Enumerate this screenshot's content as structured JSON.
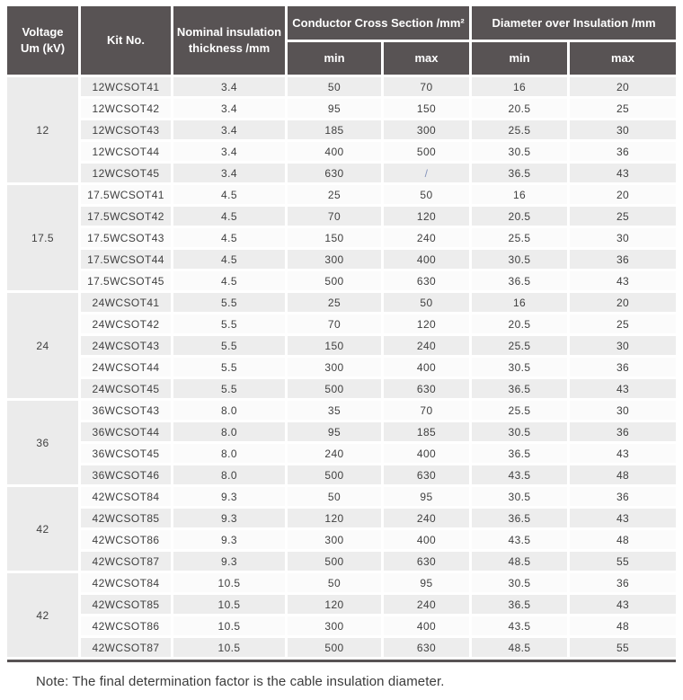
{
  "table": {
    "headers": {
      "voltage": "Voltage\nUm (kV)",
      "kit_no": "Kit No.",
      "nominal": "Nominal insulation\nthickness /mm",
      "ccs": "Conductor Cross Section /mm²",
      "doi": "Diameter over Insulation /mm",
      "min": "min",
      "max": "max"
    },
    "groups": [
      {
        "voltage": "12",
        "rows": [
          {
            "kit": "12WCSOT41",
            "thickness": "3.4",
            "ccs_min": "50",
            "ccs_max": "70",
            "doi_min": "16",
            "doi_max": "20"
          },
          {
            "kit": "12WCSOT42",
            "thickness": "3.4",
            "ccs_min": "95",
            "ccs_max": "150",
            "doi_min": "20.5",
            "doi_max": "25"
          },
          {
            "kit": "12WCSOT43",
            "thickness": "3.4",
            "ccs_min": "185",
            "ccs_max": "300",
            "doi_min": "25.5",
            "doi_max": "30"
          },
          {
            "kit": "12WCSOT44",
            "thickness": "3.4",
            "ccs_min": "400",
            "ccs_max": "500",
            "doi_min": "30.5",
            "doi_max": "36"
          },
          {
            "kit": "12WCSOT45",
            "thickness": "3.4",
            "ccs_min": "630",
            "ccs_max": "/",
            "doi_min": "36.5",
            "doi_max": "43"
          }
        ]
      },
      {
        "voltage": "17.5",
        "rows": [
          {
            "kit": "17.5WCSOT41",
            "thickness": "4.5",
            "ccs_min": "25",
            "ccs_max": "50",
            "doi_min": "16",
            "doi_max": "20"
          },
          {
            "kit": "17.5WCSOT42",
            "thickness": "4.5",
            "ccs_min": "70",
            "ccs_max": "120",
            "doi_min": "20.5",
            "doi_max": "25"
          },
          {
            "kit": "17.5WCSOT43",
            "thickness": "4.5",
            "ccs_min": "150",
            "ccs_max": "240",
            "doi_min": "25.5",
            "doi_max": "30"
          },
          {
            "kit": "17.5WCSOT44",
            "thickness": "4.5",
            "ccs_min": "300",
            "ccs_max": "400",
            "doi_min": "30.5",
            "doi_max": "36"
          },
          {
            "kit": "17.5WCSOT45",
            "thickness": "4.5",
            "ccs_min": "500",
            "ccs_max": "630",
            "doi_min": "36.5",
            "doi_max": "43"
          }
        ]
      },
      {
        "voltage": "24",
        "rows": [
          {
            "kit": "24WCSOT41",
            "thickness": "5.5",
            "ccs_min": "25",
            "ccs_max": "50",
            "doi_min": "16",
            "doi_max": "20"
          },
          {
            "kit": "24WCSOT42",
            "thickness": "5.5",
            "ccs_min": "70",
            "ccs_max": "120",
            "doi_min": "20.5",
            "doi_max": "25"
          },
          {
            "kit": "24WCSOT43",
            "thickness": "5.5",
            "ccs_min": "150",
            "ccs_max": "240",
            "doi_min": "25.5",
            "doi_max": "30"
          },
          {
            "kit": "24WCSOT44",
            "thickness": "5.5",
            "ccs_min": "300",
            "ccs_max": "400",
            "doi_min": "30.5",
            "doi_max": "36"
          },
          {
            "kit": "24WCSOT45",
            "thickness": "5.5",
            "ccs_min": "500",
            "ccs_max": "630",
            "doi_min": "36.5",
            "doi_max": "43"
          }
        ]
      },
      {
        "voltage": "36",
        "rows": [
          {
            "kit": "36WCSOT43",
            "thickness": "8.0",
            "ccs_min": "35",
            "ccs_max": "70",
            "doi_min": "25.5",
            "doi_max": "30"
          },
          {
            "kit": "36WCSOT44",
            "thickness": "8.0",
            "ccs_min": "95",
            "ccs_max": "185",
            "doi_min": "30.5",
            "doi_max": "36"
          },
          {
            "kit": "36WCSOT45",
            "thickness": "8.0",
            "ccs_min": "240",
            "ccs_max": "400",
            "doi_min": "36.5",
            "doi_max": "43"
          },
          {
            "kit": "36WCSOT46",
            "thickness": "8.0",
            "ccs_min": "500",
            "ccs_max": "630",
            "doi_min": "43.5",
            "doi_max": "48"
          }
        ]
      },
      {
        "voltage": "42",
        "rows": [
          {
            "kit": "42WCSOT84",
            "thickness": "9.3",
            "ccs_min": "50",
            "ccs_max": "95",
            "doi_min": "30.5",
            "doi_max": "36"
          },
          {
            "kit": "42WCSOT85",
            "thickness": "9.3",
            "ccs_min": "120",
            "ccs_max": "240",
            "doi_min": "36.5",
            "doi_max": "43"
          },
          {
            "kit": "42WCSOT86",
            "thickness": "9.3",
            "ccs_min": "300",
            "ccs_max": "400",
            "doi_min": "43.5",
            "doi_max": "48"
          },
          {
            "kit": "42WCSOT87",
            "thickness": "9.3",
            "ccs_min": "500",
            "ccs_max": "630",
            "doi_min": "48.5",
            "doi_max": "55"
          }
        ]
      },
      {
        "voltage": "42",
        "rows": [
          {
            "kit": "42WCSOT84",
            "thickness": "10.5",
            "ccs_min": "50",
            "ccs_max": "95",
            "doi_min": "30.5",
            "doi_max": "36"
          },
          {
            "kit": "42WCSOT85",
            "thickness": "10.5",
            "ccs_min": "120",
            "ccs_max": "240",
            "doi_min": "36.5",
            "doi_max": "43"
          },
          {
            "kit": "42WCSOT86",
            "thickness": "10.5",
            "ccs_min": "300",
            "ccs_max": "400",
            "doi_min": "43.5",
            "doi_max": "48"
          },
          {
            "kit": "42WCSOT87",
            "thickness": "10.5",
            "ccs_min": "500",
            "ccs_max": "630",
            "doi_min": "48.5",
            "doi_max": "55"
          }
        ]
      }
    ],
    "note": "Note: The final determination factor is the cable insulation diameter."
  },
  "colors": {
    "header_bg": "#585354",
    "header_text": "#ffffff",
    "row_odd_bg": "#ededed",
    "row_even_bg": "#fbfbfb",
    "group_cell_bg": "#ebebeb",
    "body_text": "#404040",
    "slash_color": "#8593bb",
    "rule_color": "#585354",
    "note_text": "#3b3b3b"
  }
}
